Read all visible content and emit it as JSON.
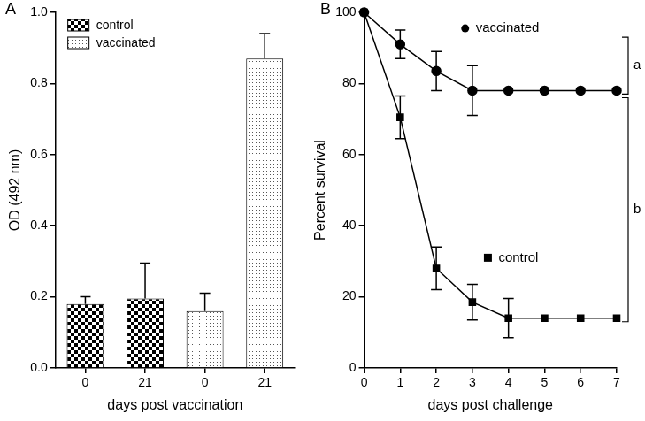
{
  "chart_data": [
    {
      "panel": "A",
      "type": "bar",
      "categories": [
        "0",
        "21",
        "0",
        "21"
      ],
      "x_label": "days post vaccination",
      "y_label": "OD (492 nm)",
      "ylim": [
        0,
        1
      ],
      "yticks": [
        {
          "value": 0,
          "label": "0.0"
        },
        {
          "value": 0.2,
          "label": "0.2"
        },
        {
          "value": 0.4,
          "label": "0.4"
        },
        {
          "value": 0.6,
          "label": "0.6"
        },
        {
          "value": 0.8,
          "label": "0.8"
        },
        {
          "value": 1,
          "label": "1.0"
        }
      ],
      "grid": false,
      "legend": "upper left",
      "series": [
        {
          "name": "control",
          "color": "#000000",
          "values": [
            0.18,
            0.195,
            null,
            null
          ],
          "error_bars": [
            0.02,
            0.1,
            null,
            null
          ]
        },
        {
          "name": "vaccinated",
          "color": "#555555",
          "values": [
            null,
            null,
            0.16,
            0.87
          ],
          "error_bars": [
            null,
            null,
            0.05,
            0.07
          ]
        }
      ]
    },
    {
      "panel": "B",
      "type": "line",
      "x": [
        0,
        1,
        2,
        3,
        4,
        5,
        6,
        7
      ],
      "x_label": "days post challenge",
      "y_label": "Percent survival",
      "xlim": [
        0,
        7
      ],
      "xticks": [
        0,
        1,
        2,
        3,
        4,
        5,
        6,
        7
      ],
      "ylim": [
        0,
        100
      ],
      "yticks": [
        0,
        20,
        40,
        60,
        80,
        100
      ],
      "grid": false,
      "series": [
        {
          "name": "vaccinated",
          "color": "#000000",
          "marker": "circle",
          "values": [
            100,
            91,
            83.5,
            78,
            78,
            78,
            78,
            78
          ],
          "error_bars": [
            0,
            4,
            5.5,
            7,
            0,
            0,
            0,
            0
          ]
        },
        {
          "name": "control",
          "color": "#000000",
          "marker": "square",
          "values": [
            100,
            70.5,
            28,
            18.5,
            14,
            14,
            14,
            14
          ],
          "error_bars": [
            0,
            6,
            6,
            5,
            5.5,
            0,
            0,
            0
          ]
        }
      ],
      "annotations": [
        {
          "text": "a",
          "y": [
            77,
            93
          ]
        },
        {
          "text": "b",
          "y": [
            13,
            76
          ]
        }
      ]
    }
  ]
}
